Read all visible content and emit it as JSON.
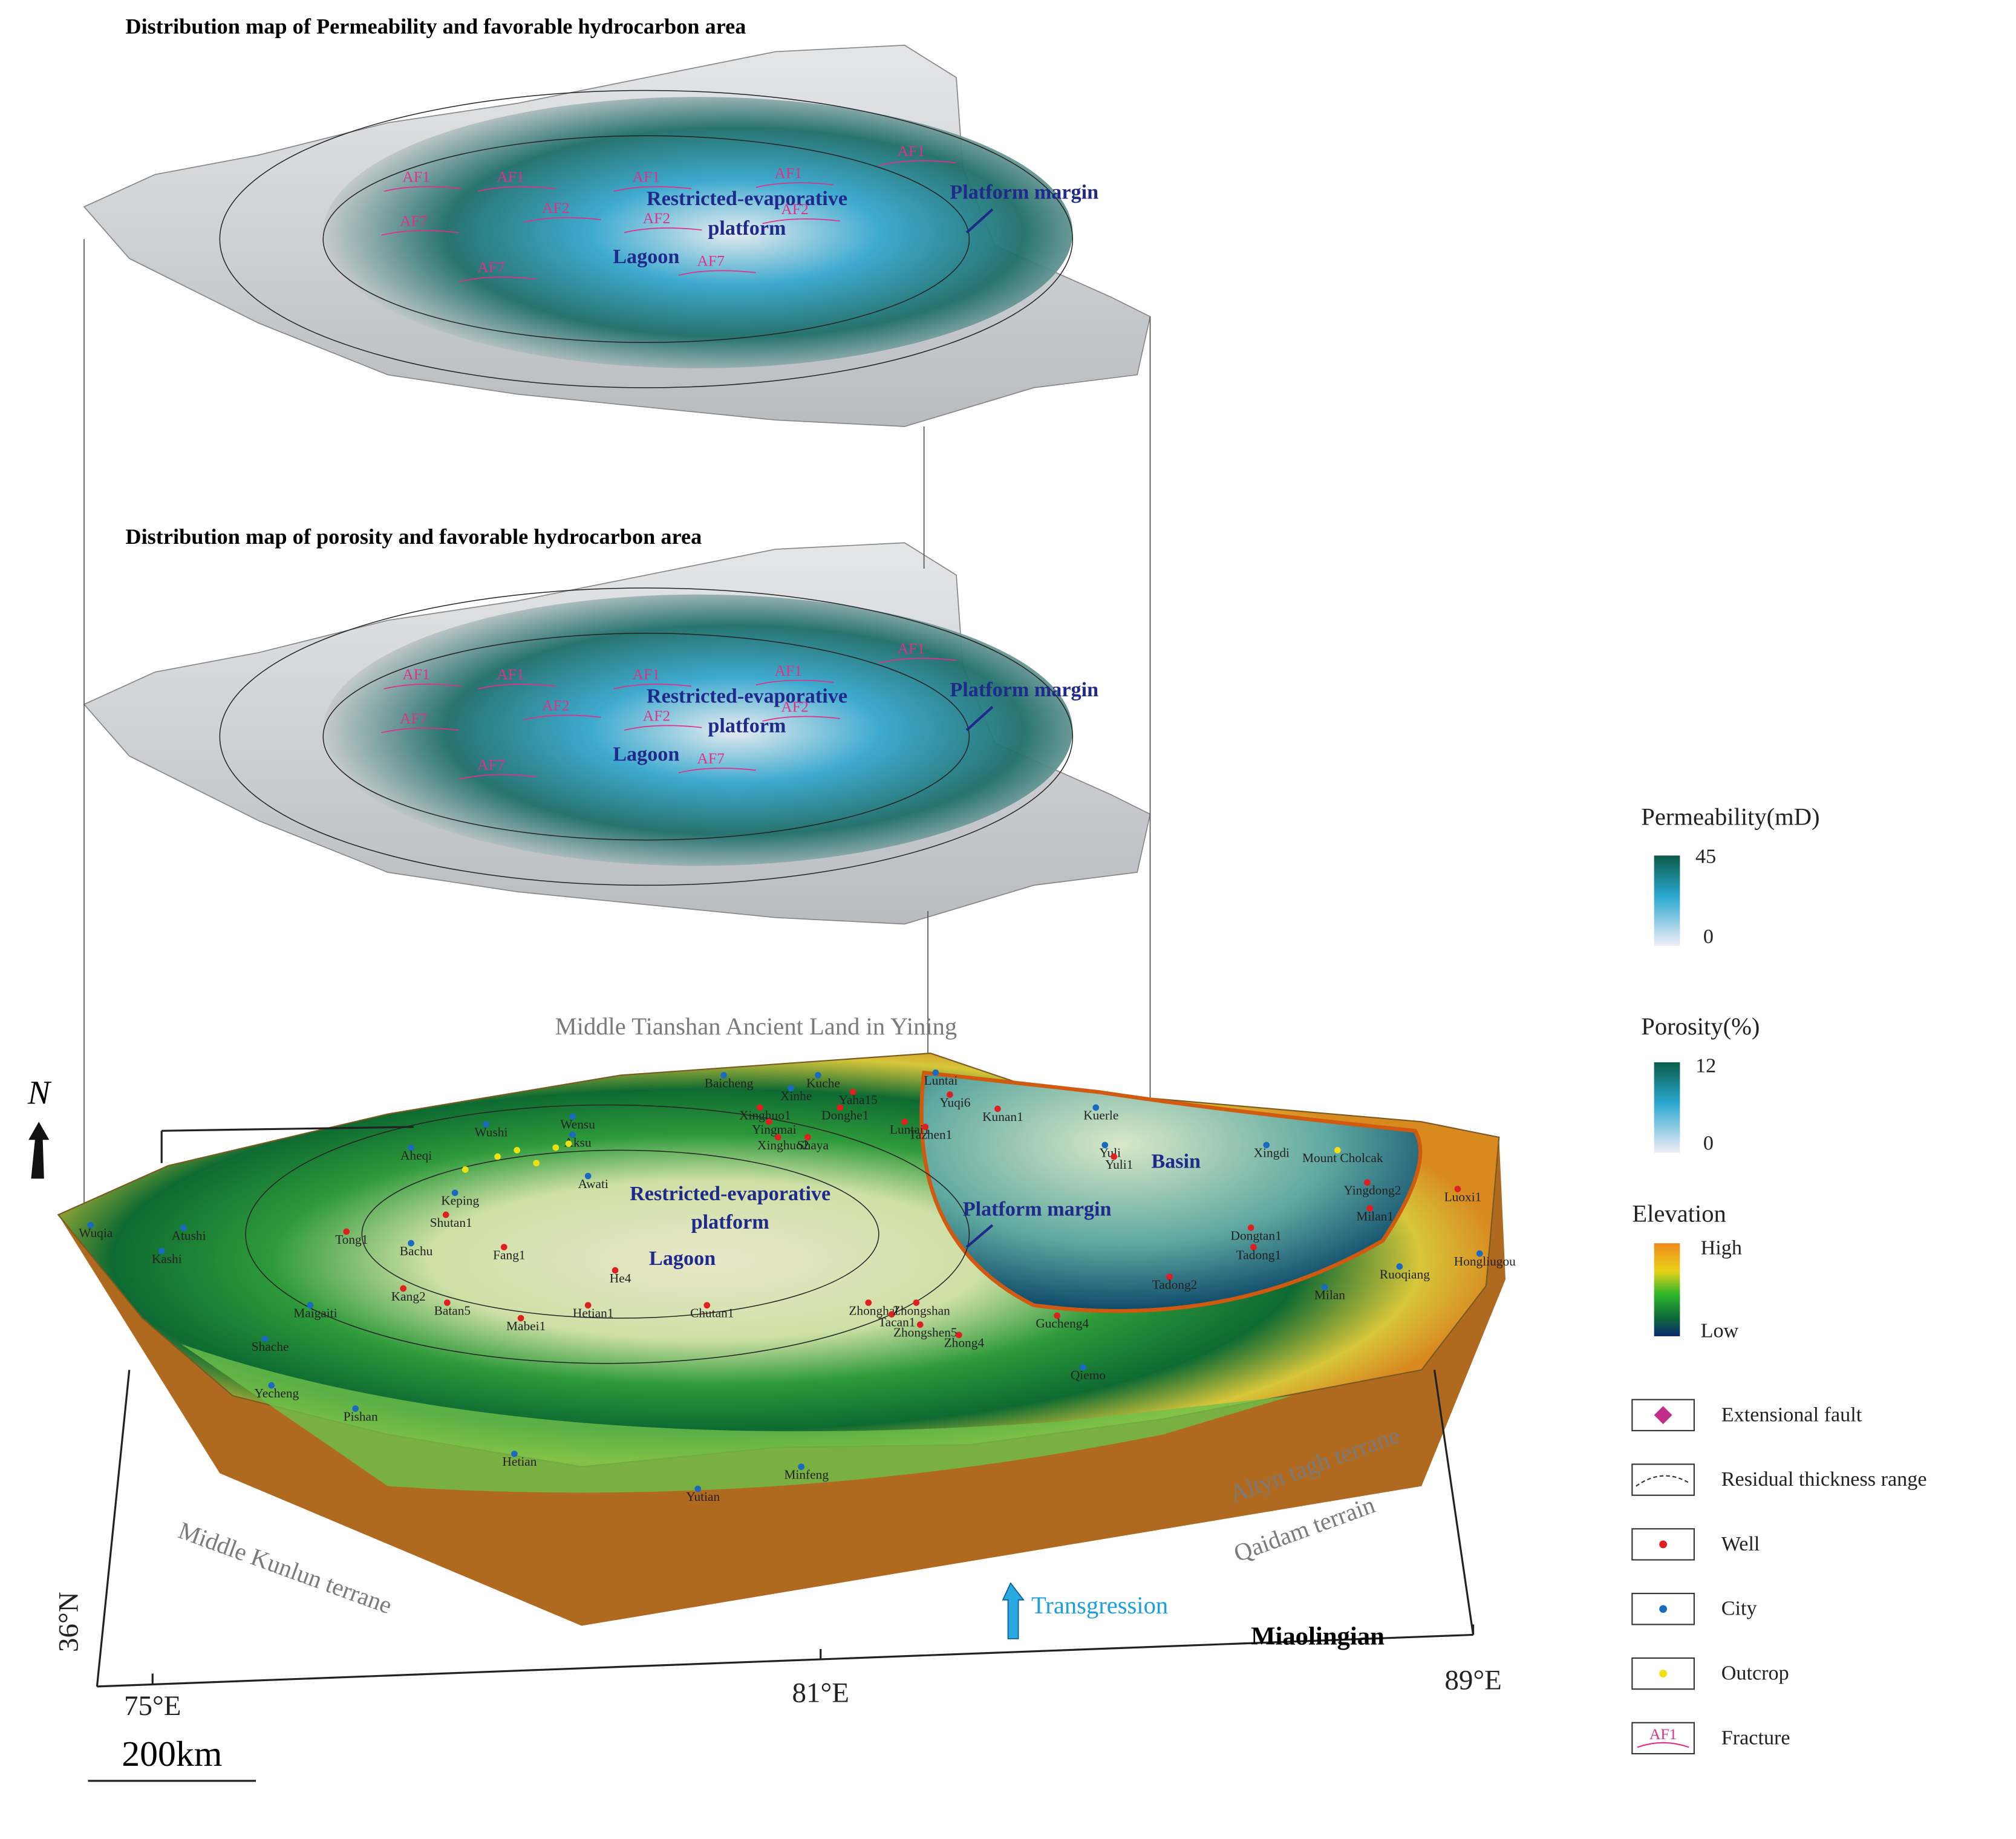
{
  "maps": [
    {
      "title": "Distribution map of Permeability and favorable hydrocarbon area",
      "facies": {
        "restricted": [
          "Restricted-evaporative",
          "platform"
        ],
        "lagoon": "Lagoon",
        "margin": "Platform margin"
      },
      "fractures": [
        "AF1",
        "AF1",
        "AF2",
        "AF7",
        "AF7",
        "AF1",
        "AF1",
        "AF2",
        "AF2",
        "AF7",
        "AF1"
      ]
    },
    {
      "title": "Distribution map of porosity and favorable hydrocarbon area",
      "facies": {
        "restricted": [
          "Restricted-evaporative",
          "platform"
        ],
        "lagoon": "Lagoon",
        "margin": "Platform margin"
      },
      "fractures": [
        "AF1",
        "AF1",
        "AF2",
        "AF7",
        "AF7",
        "AF1",
        "AF1",
        "AF2",
        "AF2",
        "AF7",
        "AF1"
      ]
    }
  ],
  "base_map": {
    "facies": {
      "restricted": [
        "Restricted-evaporative",
        "platform"
      ],
      "lagoon": "Lagoon",
      "margin": "Platform margin",
      "basin": "Basin"
    },
    "cities": [
      "Wuqia",
      "Atushi",
      "Kashi",
      "Wushi",
      "Aheqi",
      "Wensu",
      "Aksu",
      "Awati",
      "Keping",
      "Baicheng",
      "Xinhe",
      "Kuche",
      "Luntai",
      "Kuerle",
      "Yuli",
      "Xingdi",
      "Bachu",
      "Maigaiti",
      "Shache",
      "Yecheng",
      "Pishan",
      "Hetian",
      "Yutian",
      "Minfeng",
      "Qiemo",
      "Milan",
      "Ruoqiang",
      "Hongliugou"
    ],
    "wells": [
      "Tong1",
      "Shutan1",
      "Fang1",
      "Kang2",
      "Batan5",
      "Mabei1",
      "Hetian1",
      "He4",
      "Chutan1",
      "Xinghuo1",
      "Yingmai",
      "Xinghuo2",
      "Donghe1",
      "Shaya",
      "Yaha15",
      "Luntai1",
      "Tazhen1",
      "Yuqi6",
      "Kunan1",
      "Yuli1",
      "Zhonghal",
      "Tacan1",
      "Zhongshan",
      "Zhongshen5",
      "Zhong4",
      "Gucheng4",
      "Tadong2",
      "Tadong1",
      "Dongtan1",
      "Milan1",
      "Yingdong2",
      "Luoxi1"
    ],
    "outcrops": [
      "Mount Cholcak"
    ],
    "regions": {
      "north": "Middle Tianshan Ancient Land in Yining",
      "southwest": "Middle Kunlun terrane",
      "east1": "Altyn tagh terrane",
      "east2": "Qaidam terrain"
    },
    "transgression": "Transgression",
    "period": "Miaolingian",
    "north_arrow": "N",
    "lat_label": "36°N",
    "lon_labels": [
      "75°E",
      "81°E",
      "89°E"
    ],
    "scale_bar": "200km"
  },
  "legend": {
    "permeability": {
      "title": "Permeability(mD)",
      "max": "45",
      "min": "0"
    },
    "porosity": {
      "title": "Porosity(%)",
      "max": "12",
      "min": "0"
    },
    "elevation": {
      "title": "Elevation",
      "high": "High",
      "low": "Low"
    },
    "items": [
      "Extensional fault",
      "Residual thickness range",
      "Well",
      "City",
      "Outcrop",
      "Fracture"
    ],
    "fracture_icon": "AF1"
  }
}
